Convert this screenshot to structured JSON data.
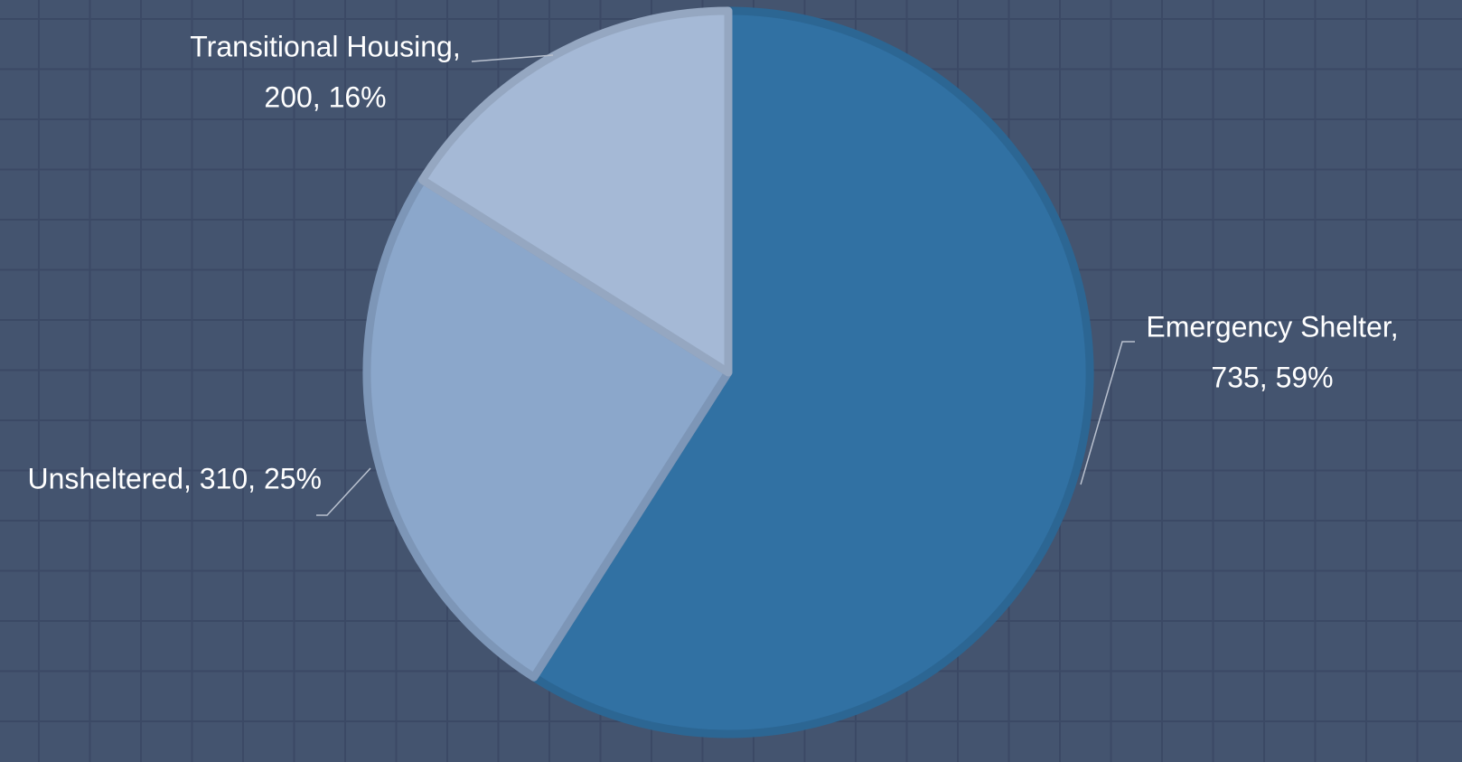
{
  "chart_data": {
    "type": "pie",
    "categories": [
      "Emergency Shelter",
      "Unsheltered",
      "Transitional Housing"
    ],
    "values": [
      735,
      310,
      200
    ],
    "value_labels": [
      [
        "Emergency Shelter,",
        "735, 59%"
      ],
      [
        "Unsheltered, 310, 25%"
      ],
      [
        "Transitional Housing,",
        "200, 16%"
      ]
    ],
    "colors": [
      "#3171a3",
      "#8ba7cb",
      "#a5b9d6"
    ],
    "start_angle": 0,
    "direction": "clockwise"
  }
}
